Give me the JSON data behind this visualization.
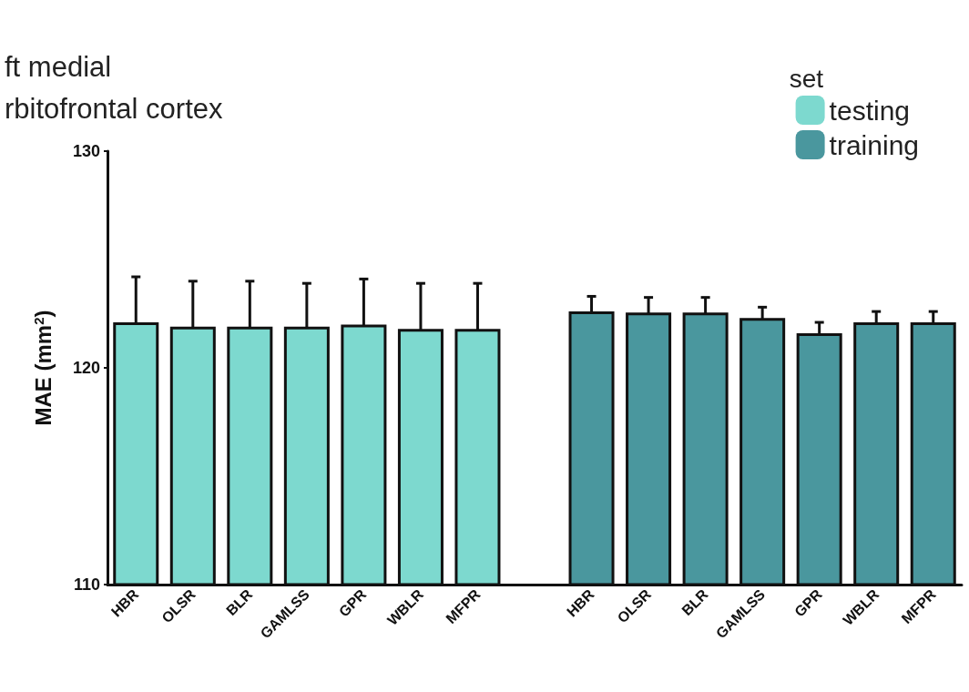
{
  "chart_data": {
    "type": "bar",
    "title": "ft medial\nrbitofrontal cortex",
    "ylabel": "MAE (mm$^{2}$)",
    "legend_title": "set",
    "categories": [
      "HBR",
      "OLSR",
      "BLR",
      "GAMLSS",
      "GPR",
      "WBLR",
      "MFPR",
      null,
      "HBR",
      "OLSR",
      "BLR",
      "GAMLSS",
      "GPR",
      "WBLR",
      "MFPR"
    ],
    "series": [
      {
        "name": "testing",
        "color": "#7dd9cf",
        "values": [
          122.1,
          121.9,
          121.9,
          121.9,
          122.0,
          121.8,
          121.8,
          null,
          null,
          null,
          null,
          null,
          null,
          null,
          null
        ],
        "errors": [
          2.1,
          2.1,
          2.1,
          2.0,
          2.1,
          2.1,
          2.1,
          null,
          null,
          null,
          null,
          null,
          null,
          null,
          null
        ]
      },
      {
        "name": "training",
        "color": "#4a979e",
        "values": [
          null,
          null,
          null,
          null,
          null,
          null,
          null,
          null,
          122.6,
          122.55,
          122.55,
          122.3,
          121.6,
          122.1,
          122.1
        ],
        "errors": [
          null,
          null,
          null,
          null,
          null,
          null,
          null,
          null,
          0.7,
          0.7,
          0.7,
          0.5,
          0.5,
          0.5,
          0.5
        ]
      }
    ],
    "ylim": [
      110,
      130
    ],
    "yticks": [
      110,
      120,
      130
    ],
    "grid": false,
    "legend": "top right"
  }
}
